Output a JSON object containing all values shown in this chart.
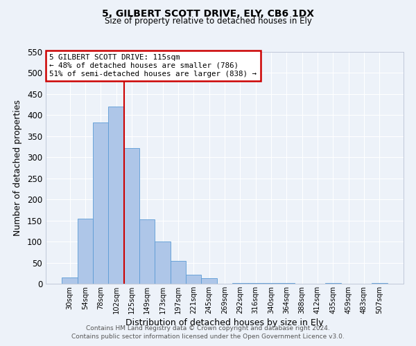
{
  "title1": "5, GILBERT SCOTT DRIVE, ELY, CB6 1DX",
  "title2": "Size of property relative to detached houses in Ely",
  "xlabel": "Distribution of detached houses by size in Ely",
  "ylabel": "Number of detached properties",
  "bar_labels": [
    "30sqm",
    "54sqm",
    "78sqm",
    "102sqm",
    "125sqm",
    "149sqm",
    "173sqm",
    "197sqm",
    "221sqm",
    "245sqm",
    "269sqm",
    "292sqm",
    "316sqm",
    "340sqm",
    "364sqm",
    "388sqm",
    "412sqm",
    "435sqm",
    "459sqm",
    "483sqm",
    "507sqm"
  ],
  "bar_values": [
    15,
    155,
    382,
    420,
    322,
    153,
    100,
    55,
    22,
    13,
    0,
    2,
    2,
    1,
    2,
    0,
    0,
    2,
    0,
    0,
    2
  ],
  "bar_color": "#aec6e8",
  "bar_edge_color": "#5b9bd5",
  "vline_color": "#cc0000",
  "vline_pos": 3.5,
  "ylim": [
    0,
    550
  ],
  "yticks": [
    0,
    50,
    100,
    150,
    200,
    250,
    300,
    350,
    400,
    450,
    500,
    550
  ],
  "annotation_title": "5 GILBERT SCOTT DRIVE: 115sqm",
  "annotation_line1": "← 48% of detached houses are smaller (786)",
  "annotation_line2": "51% of semi-detached houses are larger (838) →",
  "annotation_box_color": "#cc0000",
  "footnote1": "Contains HM Land Registry data © Crown copyright and database right 2024.",
  "footnote2": "Contains public sector information licensed under the Open Government Licence v3.0.",
  "bg_color": "#edf2f9",
  "grid_color": "#ffffff"
}
